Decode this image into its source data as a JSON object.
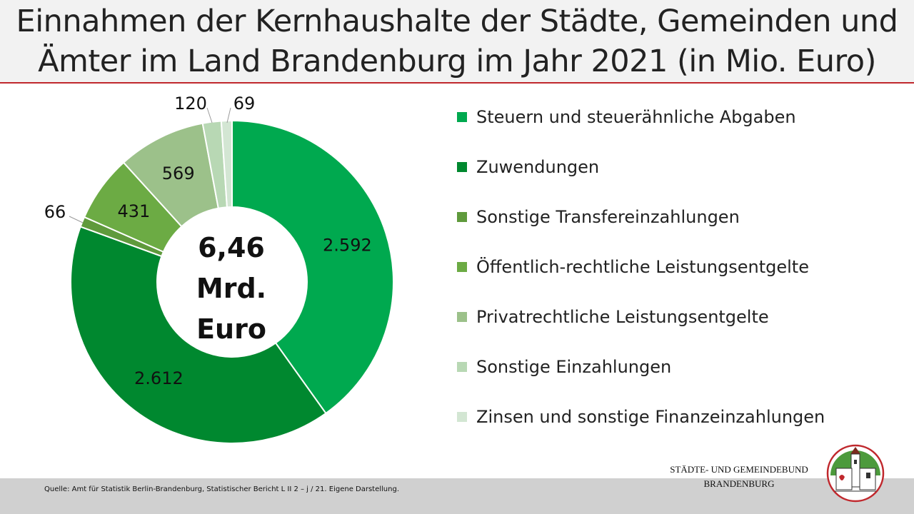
{
  "title_line1": "Einnahmen der Kernhaushalte der Städte, Gemeinden und",
  "title_line2": "Ämter im Land Brandenburg im Jahr 2021 (in Mio. Euro)",
  "center_label": [
    "6,46",
    "Mrd.",
    "Euro"
  ],
  "source": "Quelle: Amt  für Statistik Berlin-Brandenburg, Statistischer Bericht L II 2 – j / 21. Eigene Darstellung.",
  "organization": [
    "STÄDTE-  UND GEMEINDEBUND",
    "BRANDENBURG"
  ],
  "accent_color": "#c0282d",
  "chart_data": {
    "type": "pie",
    "variant": "donut",
    "unit": "Mio. Euro",
    "legend_position": "right",
    "categories": [
      "Steuern und steuerähnliche Abgaben",
      "Zuwendungen",
      "Sonstige Transfereinzahlungen",
      "Öffentlich-rechtliche Leistungsentgelte",
      "Privatrechtliche Leistungsentgelte",
      "Sonstige Einzahlungen",
      "Zinsen und sonstige Finanzeinzahlungen"
    ],
    "values": [
      2592,
      2612,
      66,
      431,
      569,
      120,
      69
    ],
    "data_labels": [
      "2.592",
      "2.612",
      "66",
      "431",
      "569",
      "120",
      "69"
    ],
    "colors": [
      "#00a94f",
      "#00882f",
      "#5f9a3c",
      "#6cab44",
      "#9cc18a",
      "#b8d8b4",
      "#d3e6d3"
    ]
  }
}
